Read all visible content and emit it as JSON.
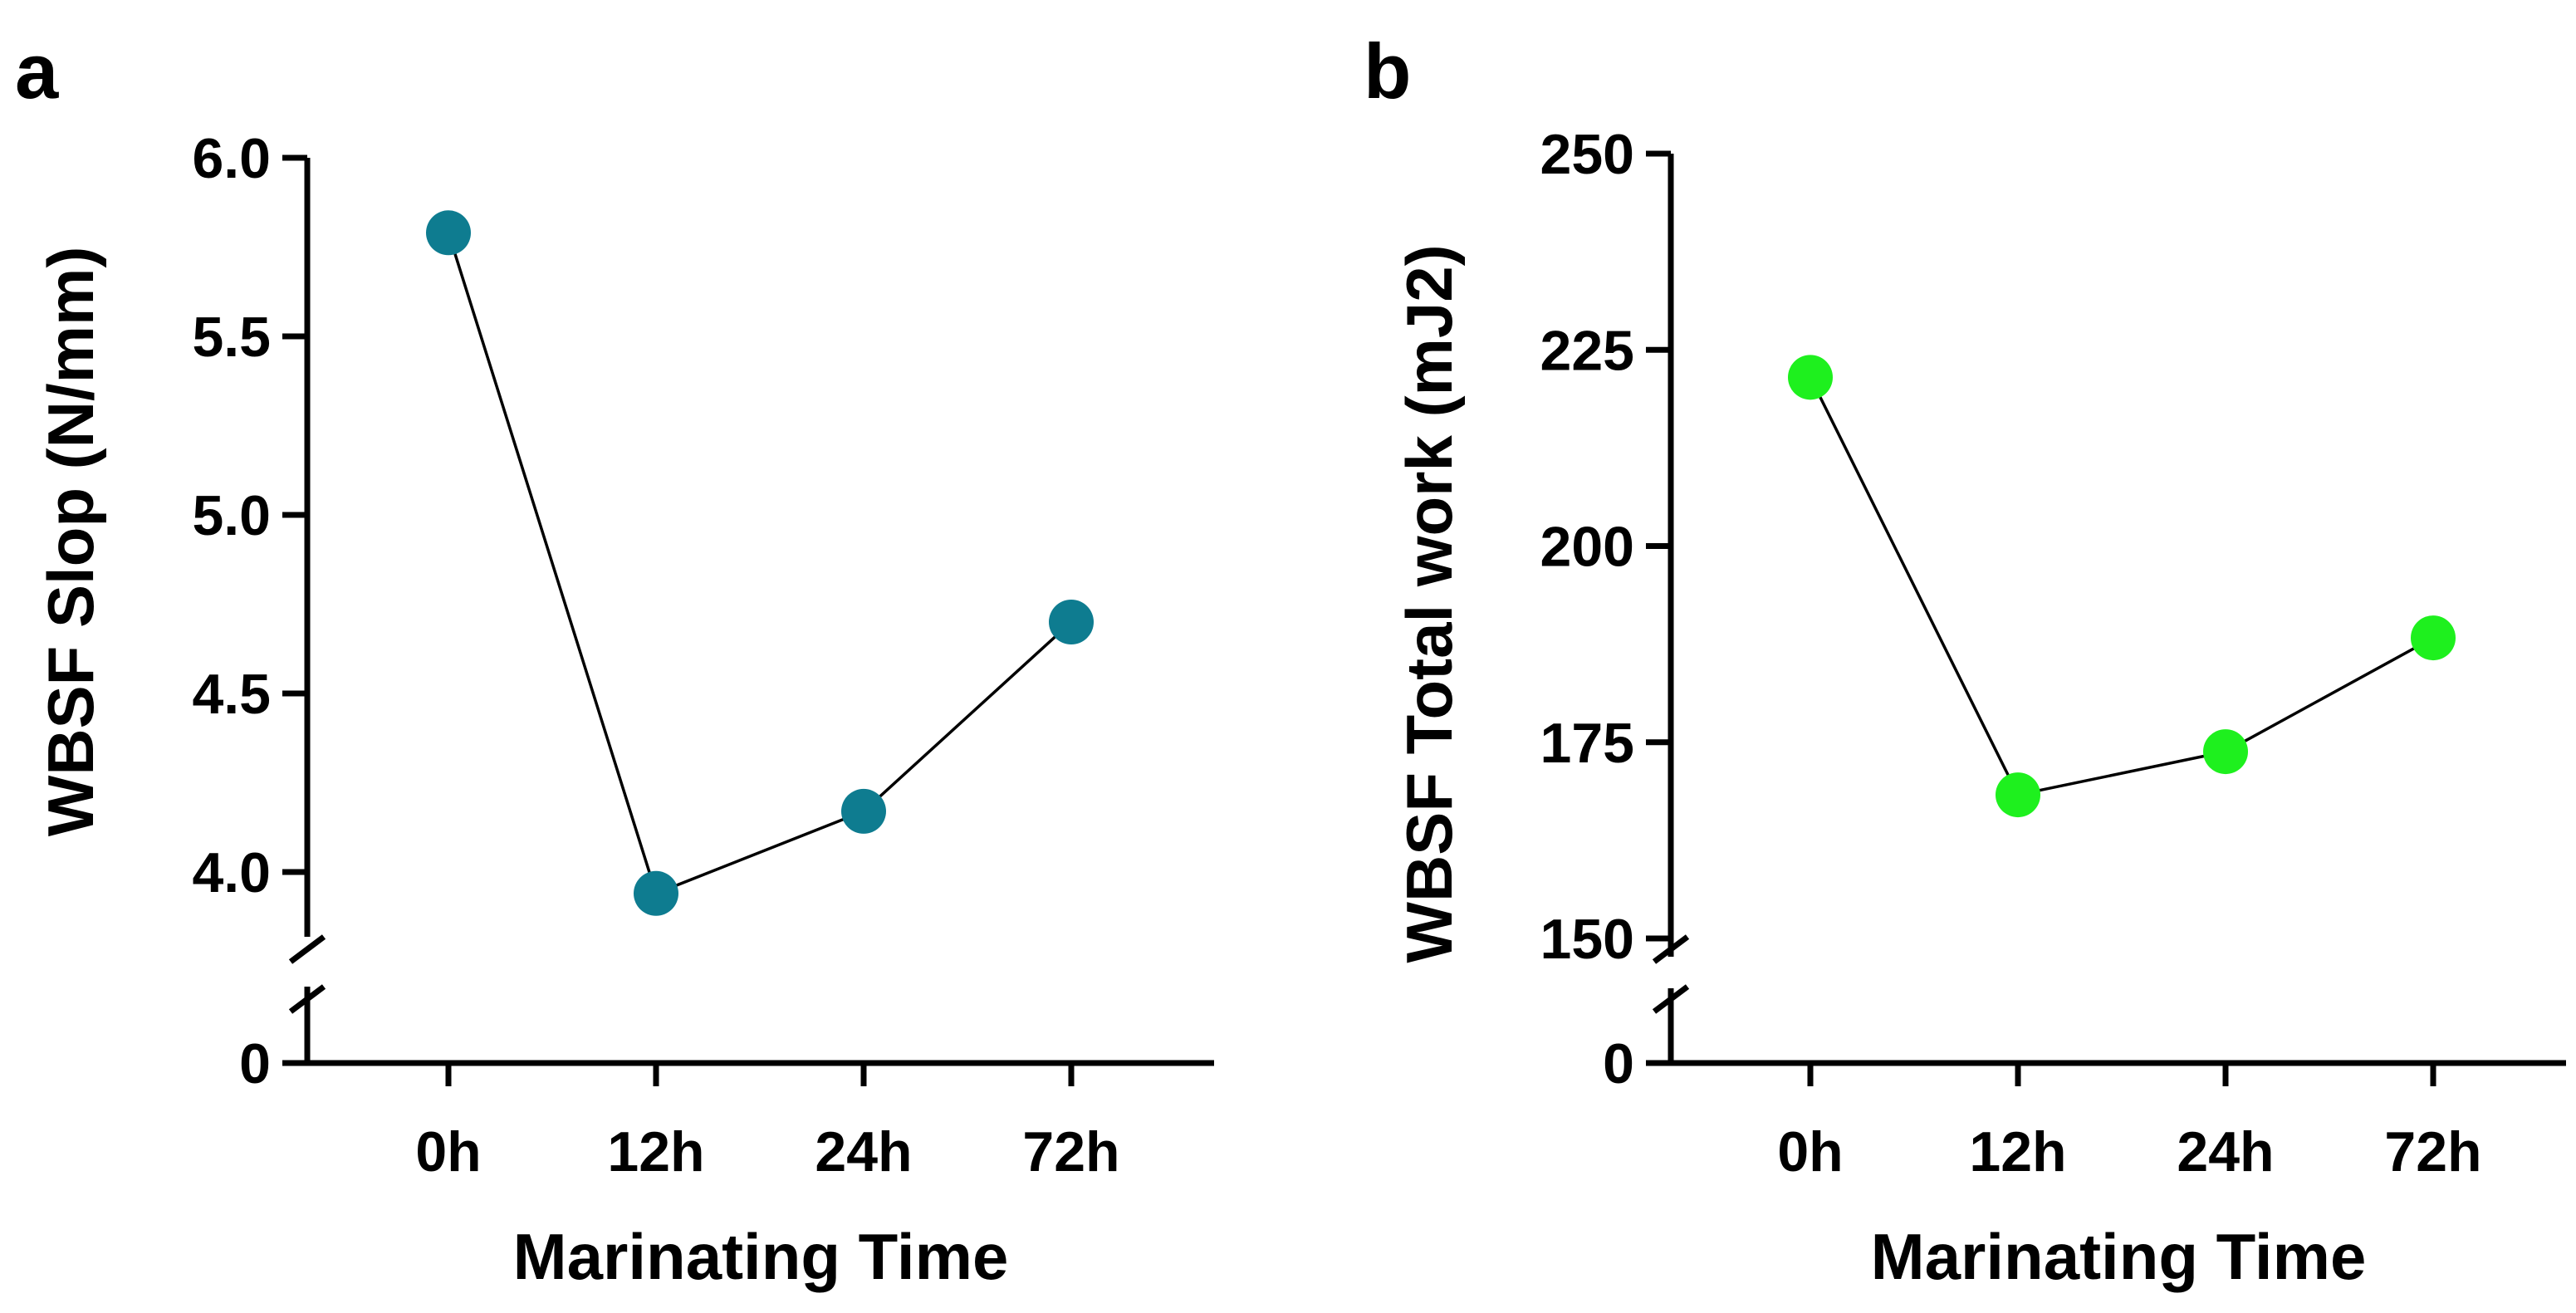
{
  "chart_data": [
    {
      "panel": "a",
      "type": "line",
      "title": "",
      "xlabel": "Marinating Time",
      "ylabel": "WBSF Slop (N/mm)",
      "categories": [
        "0h",
        "12h",
        "24h",
        "72h"
      ],
      "series": [
        {
          "name": "WBSF Slop",
          "values": [
            5.79,
            3.94,
            4.17,
            4.7
          ],
          "color": "#0E7C90"
        }
      ],
      "ylim_upper": [
        3.85,
        6.0
      ],
      "yticks_upper": [
        4.0,
        4.5,
        5.0,
        5.5,
        6.0
      ],
      "ytick_labels_upper": [
        "4.0",
        "4.5",
        "5.0",
        "5.5",
        "6.0"
      ],
      "ytick_labels_lower": [
        "0"
      ],
      "axis_break": true,
      "grid": false,
      "legend": "none"
    },
    {
      "panel": "b",
      "type": "line",
      "title": "",
      "xlabel": "Marinating Time",
      "ylabel": "WBSF Total work (mJ2)",
      "categories": [
        "0h",
        "12h",
        "24h",
        "72h"
      ],
      "series": [
        {
          "name": "WBSF Total work",
          "values": [
            221.5,
            168.3,
            173.8,
            188.3
          ],
          "color": "#1EF01E"
        }
      ],
      "ylim_upper": [
        150,
        250
      ],
      "yticks_upper": [
        150,
        175,
        200,
        225,
        250
      ],
      "ytick_labels_upper": [
        "150",
        "175",
        "200",
        "225",
        "250"
      ],
      "ytick_labels_lower": [
        "0"
      ],
      "axis_break": true,
      "grid": false,
      "legend": "none"
    }
  ]
}
